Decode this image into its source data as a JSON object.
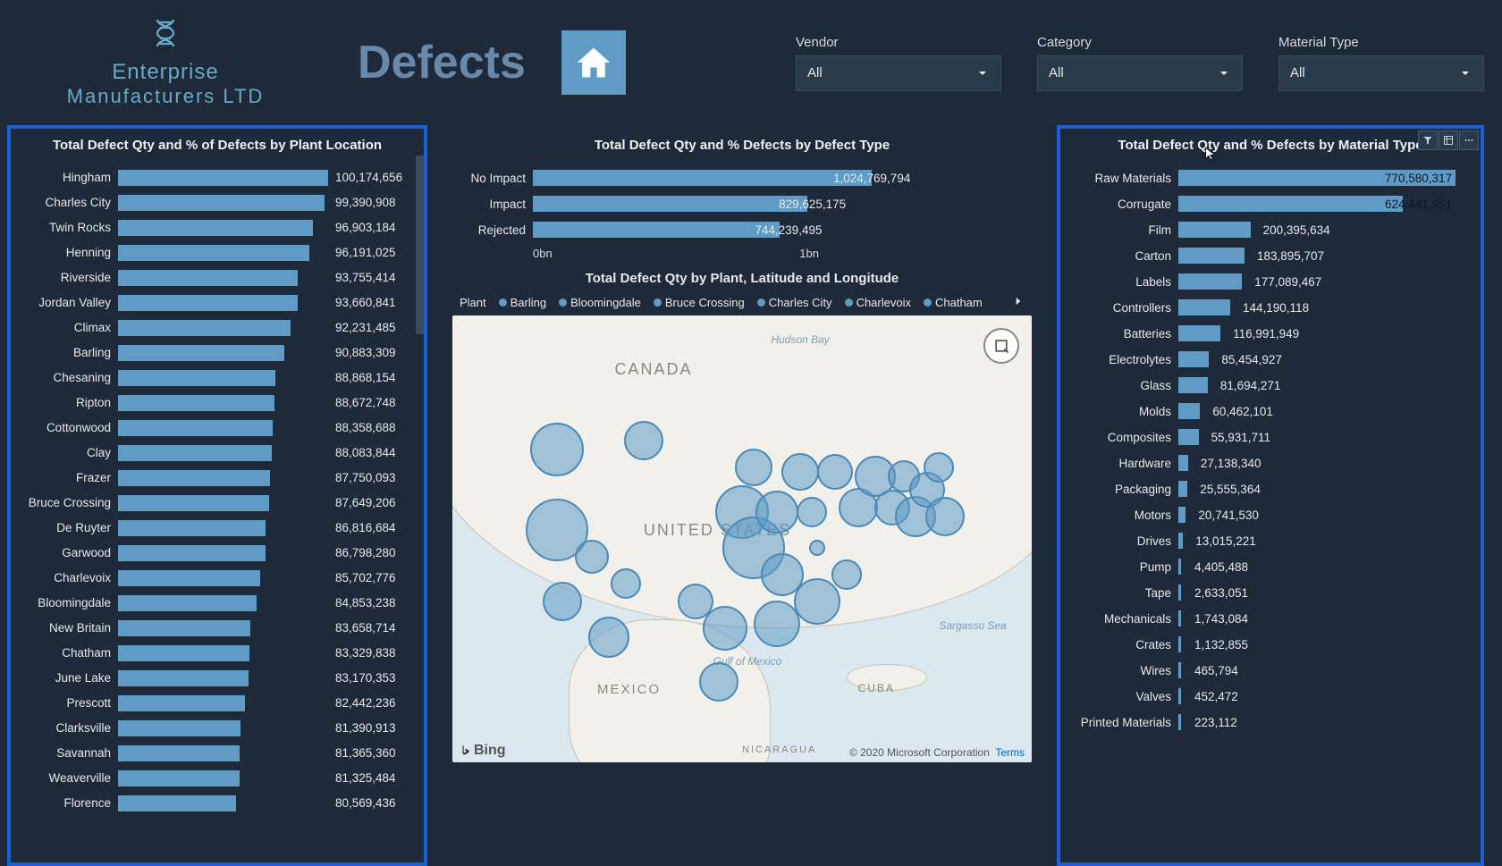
{
  "company": {
    "line1": "Enterprise",
    "line2": "Manufacturers LTD"
  },
  "page_title": "Defects",
  "filters": {
    "vendor": {
      "label": "Vendor",
      "value": "All"
    },
    "category": {
      "label": "Category",
      "value": "All"
    },
    "material": {
      "label": "Material Type",
      "value": "All"
    }
  },
  "colors": {
    "bar_fill": "#5f9bc4",
    "panel_border": "#1a5fd4",
    "background": "#1e2a3a",
    "accent_text": "#6aa8c8",
    "map_water": "#dce8ef",
    "map_land": "#f2f0eb",
    "bubble_fill": "rgba(95,155,196,0.55)",
    "bubble_stroke": "#4a8ab8"
  },
  "plant_chart": {
    "title": "Total Defect Qty and % of Defects by Plant Location",
    "max": 100174656,
    "rows": [
      {
        "label": "Hingham",
        "value": 100174656,
        "text": "100,174,656"
      },
      {
        "label": "Charles City",
        "value": 99390908,
        "text": "99,390,908"
      },
      {
        "label": "Twin Rocks",
        "value": 96903184,
        "text": "96,903,184"
      },
      {
        "label": "Henning",
        "value": 96191025,
        "text": "96,191,025"
      },
      {
        "label": "Riverside",
        "value": 93755414,
        "text": "93,755,414"
      },
      {
        "label": "Jordan Valley",
        "value": 93660841,
        "text": "93,660,841"
      },
      {
        "label": "Climax",
        "value": 92231485,
        "text": "92,231,485"
      },
      {
        "label": "Barling",
        "value": 90883309,
        "text": "90,883,309"
      },
      {
        "label": "Chesaning",
        "value": 88868154,
        "text": "88,868,154"
      },
      {
        "label": "Ripton",
        "value": 88672748,
        "text": "88,672,748"
      },
      {
        "label": "Cottonwood",
        "value": 88358688,
        "text": "88,358,688"
      },
      {
        "label": "Clay",
        "value": 88083844,
        "text": "88,083,844"
      },
      {
        "label": "Frazer",
        "value": 87750093,
        "text": "87,750,093"
      },
      {
        "label": "Bruce Crossing",
        "value": 87649206,
        "text": "87,649,206"
      },
      {
        "label": "De Ruyter",
        "value": 86816684,
        "text": "86,816,684"
      },
      {
        "label": "Garwood",
        "value": 86798280,
        "text": "86,798,280"
      },
      {
        "label": "Charlevoix",
        "value": 85702776,
        "text": "85,702,776"
      },
      {
        "label": "Bloomingdale",
        "value": 84853238,
        "text": "84,853,238"
      },
      {
        "label": "New Britain",
        "value": 83658714,
        "text": "83,658,714"
      },
      {
        "label": "Chatham",
        "value": 83329838,
        "text": "83,329,838"
      },
      {
        "label": "June Lake",
        "value": 83170353,
        "text": "83,170,353"
      },
      {
        "label": "Prescott",
        "value": 82442236,
        "text": "82,442,236"
      },
      {
        "label": "Clarksville",
        "value": 81390913,
        "text": "81,390,913"
      },
      {
        "label": "Savannah",
        "value": 81365360,
        "text": "81,365,360"
      },
      {
        "label": "Weaverville",
        "value": 81325484,
        "text": "81,325,484"
      },
      {
        "label": "Florence",
        "value": 80569436,
        "text": "80,569,436"
      }
    ]
  },
  "defect_type_chart": {
    "title": "Total Defect Qty and % Defects by Defect Type",
    "max": 1024769794,
    "axis": {
      "ticks": [
        "0bn",
        "1bn"
      ],
      "positions": [
        0,
        100
      ]
    },
    "rows": [
      {
        "label": "No Impact",
        "value": 1024769794,
        "text": "1,024,769,794"
      },
      {
        "label": "Impact",
        "value": 829625175,
        "text": "829,625,175"
      },
      {
        "label": "Rejected",
        "value": 744239495,
        "text": "744,239,495"
      }
    ]
  },
  "material_chart": {
    "title": "Total Defect Qty and % Defects by Material Type",
    "max": 770580317,
    "rows": [
      {
        "label": "Raw Materials",
        "value": 770580317,
        "text": "770,580,317"
      },
      {
        "label": "Corrugate",
        "value": 624441951,
        "text": "624,441,951"
      },
      {
        "label": "Film",
        "value": 200395634,
        "text": "200,395,634"
      },
      {
        "label": "Carton",
        "value": 183895707,
        "text": "183,895,707"
      },
      {
        "label": "Labels",
        "value": 177089467,
        "text": "177,089,467"
      },
      {
        "label": "Controllers",
        "value": 144190118,
        "text": "144,190,118"
      },
      {
        "label": "Batteries",
        "value": 116991949,
        "text": "116,991,949"
      },
      {
        "label": "Electrolytes",
        "value": 85454927,
        "text": "85,454,927"
      },
      {
        "label": "Glass",
        "value": 81694271,
        "text": "81,694,271"
      },
      {
        "label": "Molds",
        "value": 60462101,
        "text": "60,462,101"
      },
      {
        "label": "Composites",
        "value": 55931711,
        "text": "55,931,711"
      },
      {
        "label": "Hardware",
        "value": 27138340,
        "text": "27,138,340"
      },
      {
        "label": "Packaging",
        "value": 25555364,
        "text": "25,555,364"
      },
      {
        "label": "Motors",
        "value": 20741530,
        "text": "20,741,530"
      },
      {
        "label": "Drives",
        "value": 13015221,
        "text": "13,015,221"
      },
      {
        "label": "Pump",
        "value": 4405488,
        "text": "4,405,488"
      },
      {
        "label": "Tape",
        "value": 2633051,
        "text": "2,633,051"
      },
      {
        "label": "Mechanicals",
        "value": 1743084,
        "text": "1,743,084"
      },
      {
        "label": "Crates",
        "value": 1132855,
        "text": "1,132,855"
      },
      {
        "label": "Wires",
        "value": 465794,
        "text": "465,794"
      },
      {
        "label": "Valves",
        "value": 452472,
        "text": "452,472"
      },
      {
        "label": "Printed Materials",
        "value": 223112,
        "text": "223,112"
      }
    ]
  },
  "map": {
    "title": "Total Defect Qty by Plant, Latitude and Longitude",
    "legend_label": "Plant",
    "legend_items": [
      "Barling",
      "Bloomingdale",
      "Bruce Crossing",
      "Charles City",
      "Charlevoix",
      "Chatham"
    ],
    "labels": {
      "canada": "CANADA",
      "us": "UNITED STATES",
      "mexico": "MEXICO",
      "cuba": "CUBA",
      "nicaragua": "NICARAGUA",
      "hudson": "Hudson Bay",
      "gulf": "Gulf of Mexico",
      "sargasso": "Sargasso Sea"
    },
    "bubbles": [
      {
        "x": 18,
        "y": 30,
        "r": 30
      },
      {
        "x": 33,
        "y": 28,
        "r": 22
      },
      {
        "x": 18,
        "y": 48,
        "r": 35
      },
      {
        "x": 24,
        "y": 54,
        "r": 19
      },
      {
        "x": 19,
        "y": 64,
        "r": 22
      },
      {
        "x": 27,
        "y": 72,
        "r": 23
      },
      {
        "x": 30,
        "y": 60,
        "r": 17
      },
      {
        "x": 42,
        "y": 64,
        "r": 20
      },
      {
        "x": 47,
        "y": 70,
        "r": 25
      },
      {
        "x": 46,
        "y": 82,
        "r": 22
      },
      {
        "x": 52,
        "y": 34,
        "r": 21
      },
      {
        "x": 50,
        "y": 44,
        "r": 30
      },
      {
        "x": 52,
        "y": 52,
        "r": 35
      },
      {
        "x": 56,
        "y": 44,
        "r": 24
      },
      {
        "x": 57,
        "y": 58,
        "r": 24
      },
      {
        "x": 56,
        "y": 69,
        "r": 26
      },
      {
        "x": 60,
        "y": 35,
        "r": 21
      },
      {
        "x": 62,
        "y": 44,
        "r": 17
      },
      {
        "x": 63,
        "y": 52,
        "r": 9
      },
      {
        "x": 63,
        "y": 64,
        "r": 26
      },
      {
        "x": 68,
        "y": 58,
        "r": 17
      },
      {
        "x": 66,
        "y": 35,
        "r": 20
      },
      {
        "x": 70,
        "y": 43,
        "r": 22
      },
      {
        "x": 73,
        "y": 36,
        "r": 23
      },
      {
        "x": 76,
        "y": 43,
        "r": 20
      },
      {
        "x": 78,
        "y": 36,
        "r": 18
      },
      {
        "x": 80,
        "y": 45,
        "r": 23
      },
      {
        "x": 82,
        "y": 39,
        "r": 20
      },
      {
        "x": 85,
        "y": 45,
        "r": 22
      },
      {
        "x": 84,
        "y": 34,
        "r": 17
      }
    ],
    "attribution": {
      "bing": "Bing",
      "copyright": "© 2020 Microsoft Corporation",
      "terms": "Terms"
    }
  }
}
